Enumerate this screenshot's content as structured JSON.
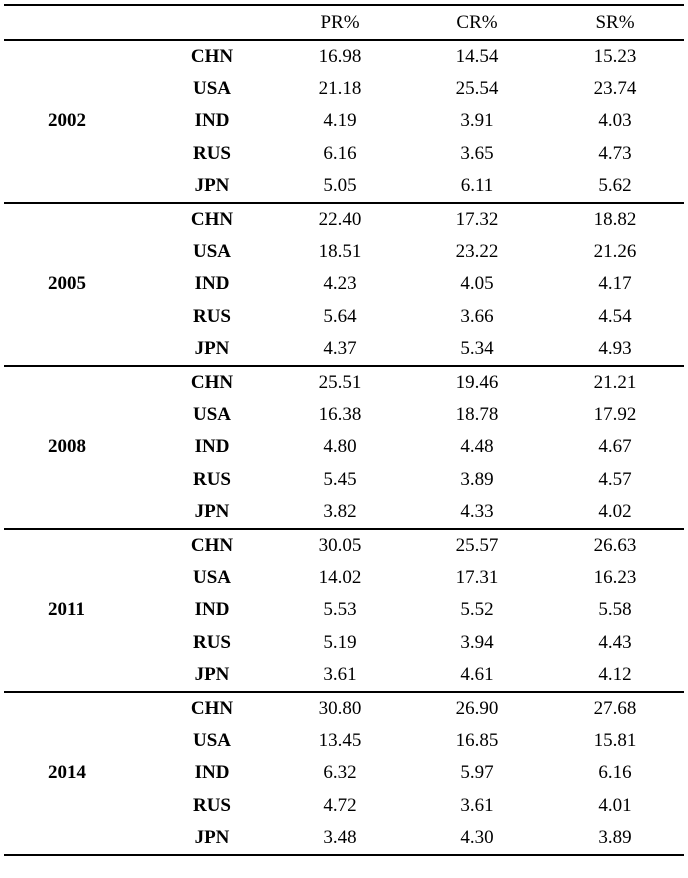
{
  "table": {
    "headers": [
      "",
      "",
      "PR%",
      "CR%",
      "SR%"
    ],
    "groups": [
      {
        "year": "2002",
        "rows": [
          {
            "country": "CHN",
            "pr": "16.98",
            "cr": "14.54",
            "sr": "15.23"
          },
          {
            "country": "USA",
            "pr": "21.18",
            "cr": "25.54",
            "sr": "23.74"
          },
          {
            "country": "IND",
            "pr": "4.19",
            "cr": "3.91",
            "sr": "4.03"
          },
          {
            "country": "RUS",
            "pr": "6.16",
            "cr": "3.65",
            "sr": "4.73"
          },
          {
            "country": "JPN",
            "pr": "5.05",
            "cr": "6.11",
            "sr": "5.62"
          }
        ]
      },
      {
        "year": "2005",
        "rows": [
          {
            "country": "CHN",
            "pr": "22.40",
            "cr": "17.32",
            "sr": "18.82"
          },
          {
            "country": "USA",
            "pr": "18.51",
            "cr": "23.22",
            "sr": "21.26"
          },
          {
            "country": "IND",
            "pr": "4.23",
            "cr": "4.05",
            "sr": "4.17"
          },
          {
            "country": "RUS",
            "pr": "5.64",
            "cr": "3.66",
            "sr": "4.54"
          },
          {
            "country": "JPN",
            "pr": "4.37",
            "cr": "5.34",
            "sr": "4.93"
          }
        ]
      },
      {
        "year": "2008",
        "rows": [
          {
            "country": "CHN",
            "pr": "25.51",
            "cr": "19.46",
            "sr": "21.21"
          },
          {
            "country": "USA",
            "pr": "16.38",
            "cr": "18.78",
            "sr": "17.92"
          },
          {
            "country": "IND",
            "pr": "4.80",
            "cr": "4.48",
            "sr": "4.67"
          },
          {
            "country": "RUS",
            "pr": "5.45",
            "cr": "3.89",
            "sr": "4.57"
          },
          {
            "country": "JPN",
            "pr": "3.82",
            "cr": "4.33",
            "sr": "4.02"
          }
        ]
      },
      {
        "year": "2011",
        "rows": [
          {
            "country": "CHN",
            "pr": "30.05",
            "cr": "25.57",
            "sr": "26.63"
          },
          {
            "country": "USA",
            "pr": "14.02",
            "cr": "17.31",
            "sr": "16.23"
          },
          {
            "country": "IND",
            "pr": "5.53",
            "cr": "5.52",
            "sr": "5.58"
          },
          {
            "country": "RUS",
            "pr": "5.19",
            "cr": "3.94",
            "sr": "4.43"
          },
          {
            "country": "JPN",
            "pr": "3.61",
            "cr": "4.61",
            "sr": "4.12"
          }
        ]
      },
      {
        "year": "2014",
        "rows": [
          {
            "country": "CHN",
            "pr": "30.80",
            "cr": "26.90",
            "sr": "27.68"
          },
          {
            "country": "USA",
            "pr": "13.45",
            "cr": "16.85",
            "sr": "15.81"
          },
          {
            "country": "IND",
            "pr": "6.32",
            "cr": "5.97",
            "sr": "6.16"
          },
          {
            "country": "RUS",
            "pr": "4.72",
            "cr": "3.61",
            "sr": "4.01"
          },
          {
            "country": "JPN",
            "pr": "3.48",
            "cr": "4.30",
            "sr": "3.89"
          }
        ]
      }
    ]
  }
}
